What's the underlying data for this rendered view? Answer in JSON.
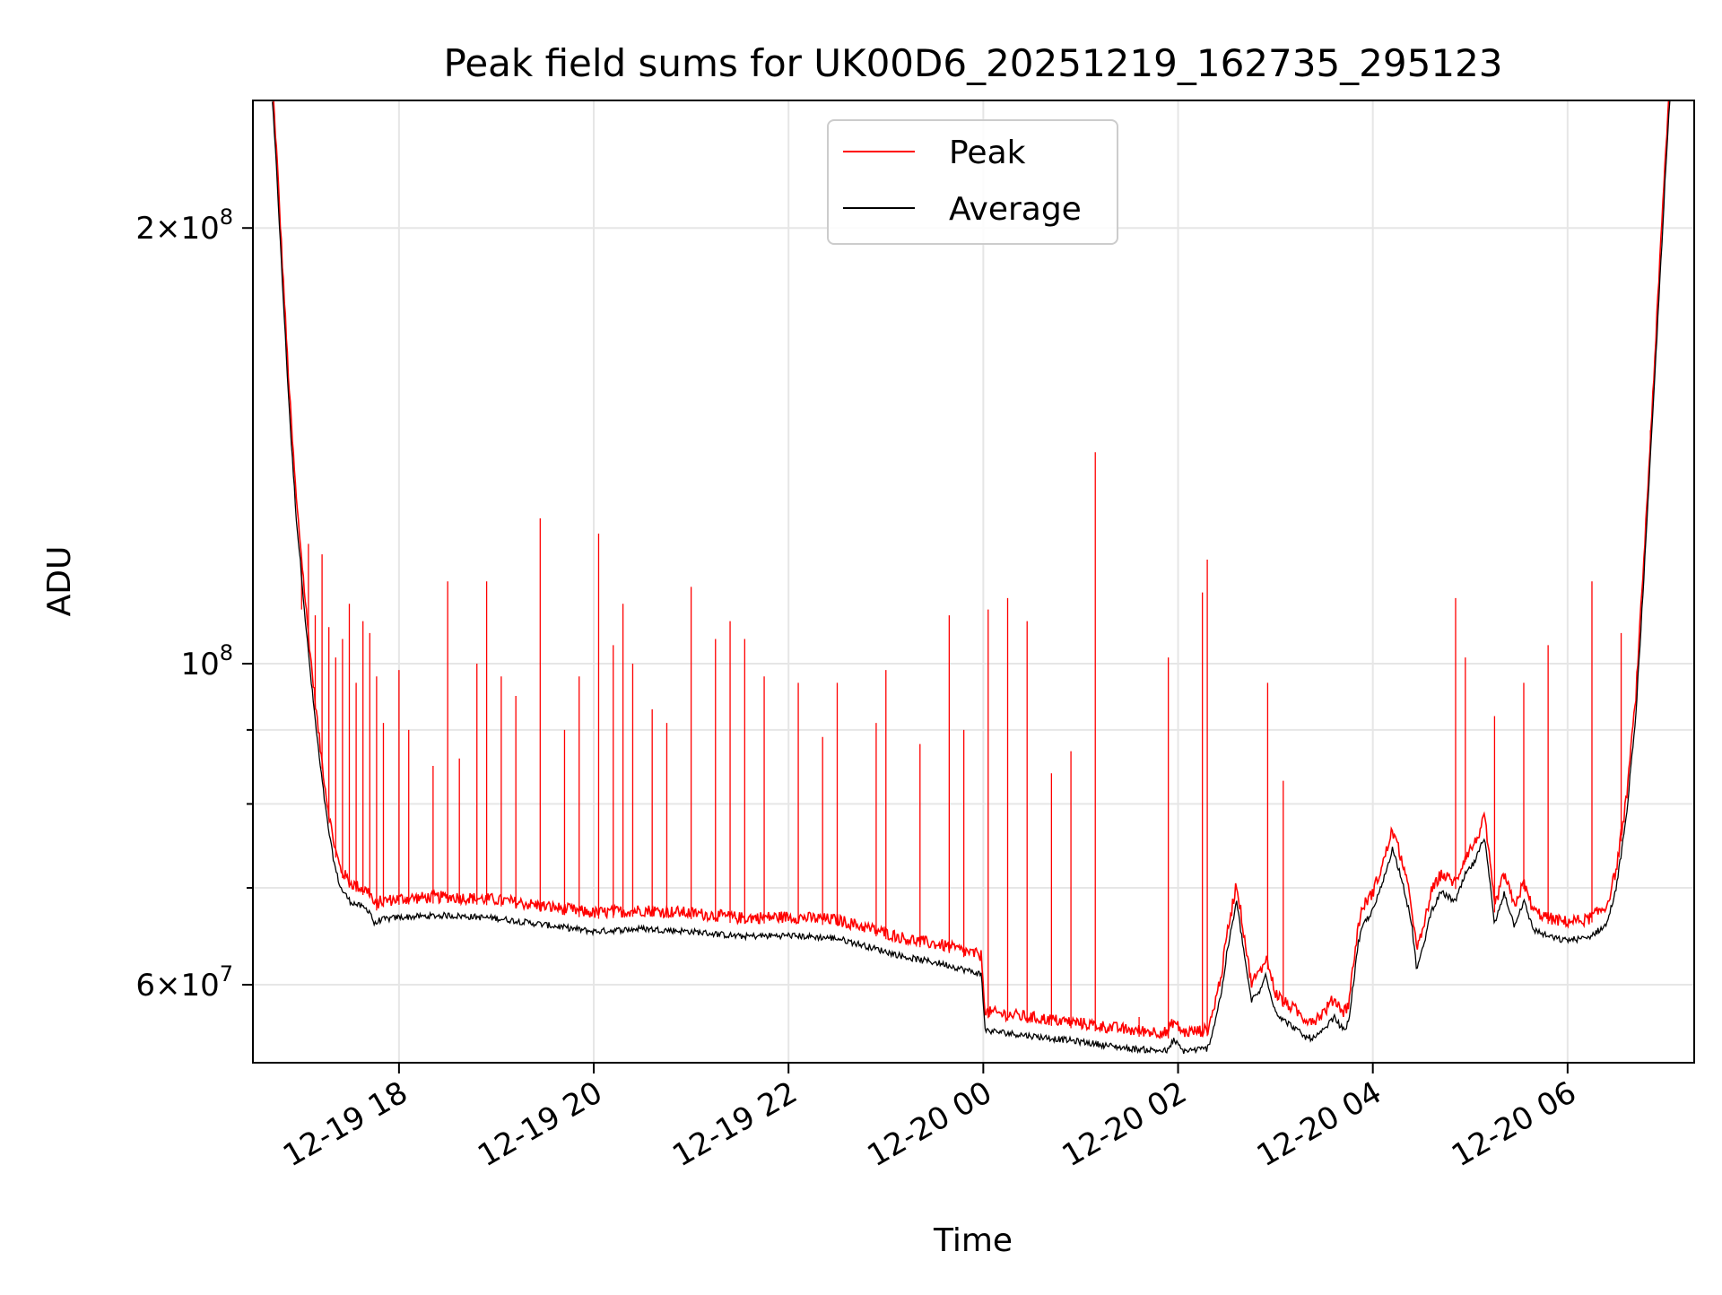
{
  "chart_data": {
    "type": "line",
    "title": "Peak field sums for UK00D6_20251219_162735_295123",
    "xlabel": "Time",
    "ylabel": "ADU",
    "yscale": "log",
    "xlim_hours": [
      16.5,
      31.3
    ],
    "ylim": [
      53000000,
      245000000
    ],
    "grid": true,
    "legend_position": "upper center",
    "legend": [
      {
        "name": "Peak",
        "color": "#ff0000"
      },
      {
        "name": "Average",
        "color": "#000000"
      }
    ],
    "x_ticks": [
      {
        "hour": 18,
        "label": "12-19 18"
      },
      {
        "hour": 20,
        "label": "12-19 20"
      },
      {
        "hour": 22,
        "label": "12-19 22"
      },
      {
        "hour": 24,
        "label": "12-20 00"
      },
      {
        "hour": 26,
        "label": "12-20 02"
      },
      {
        "hour": 28,
        "label": "12-20 04"
      },
      {
        "hour": 30,
        "label": "12-20 06"
      }
    ],
    "y_major_ticks": [
      {
        "value": 60000000,
        "mantissa": "6",
        "exponent": "7"
      },
      {
        "value": 100000000,
        "mantissa": "",
        "exponent": "8"
      },
      {
        "value": 200000000,
        "mantissa": "2",
        "exponent": "8"
      }
    ],
    "y_minor_ticks": [
      70000000,
      80000000,
      90000000
    ],
    "series": [
      {
        "name": "Average",
        "color": "#000000",
        "points": [
          [
            16.7,
            245000000
          ],
          [
            16.75,
            215000000
          ],
          [
            16.8,
            185000000
          ],
          [
            16.85,
            160000000
          ],
          [
            16.9,
            140000000
          ],
          [
            16.95,
            125000000
          ],
          [
            17.0,
            115000000
          ],
          [
            17.05,
            105000000
          ],
          [
            17.1,
            97000000
          ],
          [
            17.15,
            90000000
          ],
          [
            17.2,
            84000000
          ],
          [
            17.25,
            79000000
          ],
          [
            17.3,
            75000000
          ],
          [
            17.35,
            72000000
          ],
          [
            17.4,
            70000000
          ],
          [
            17.5,
            68500000
          ],
          [
            17.6,
            68000000
          ],
          [
            17.7,
            67500000
          ],
          [
            17.75,
            66000000
          ],
          [
            17.8,
            66500000
          ],
          [
            18.0,
            66800000
          ],
          [
            18.5,
            67000000
          ],
          [
            19.0,
            66700000
          ],
          [
            19.5,
            66000000
          ],
          [
            20.0,
            65300000
          ],
          [
            20.5,
            65600000
          ],
          [
            21.0,
            65300000
          ],
          [
            21.5,
            64800000
          ],
          [
            22.0,
            64900000
          ],
          [
            22.5,
            64600000
          ],
          [
            22.8,
            63800000
          ],
          [
            23.2,
            62700000
          ],
          [
            23.6,
            62000000
          ],
          [
            23.98,
            61000000
          ],
          [
            24.02,
            55800000
          ],
          [
            24.5,
            55300000
          ],
          [
            25.0,
            54800000
          ],
          [
            25.5,
            54200000
          ],
          [
            25.9,
            54000000
          ],
          [
            25.95,
            55000000
          ],
          [
            26.05,
            54000000
          ],
          [
            26.3,
            54200000
          ],
          [
            26.35,
            55500000
          ],
          [
            26.45,
            59500000
          ],
          [
            26.5,
            63000000
          ],
          [
            26.6,
            68500000
          ],
          [
            26.68,
            63000000
          ],
          [
            26.75,
            58500000
          ],
          [
            26.85,
            59500000
          ],
          [
            26.9,
            61000000
          ],
          [
            27.0,
            57500000
          ],
          [
            27.1,
            56600000
          ],
          [
            27.2,
            56000000
          ],
          [
            27.3,
            55200000
          ],
          [
            27.4,
            55100000
          ],
          [
            27.5,
            55800000
          ],
          [
            27.6,
            57000000
          ],
          [
            27.7,
            55800000
          ],
          [
            27.75,
            56500000
          ],
          [
            27.85,
            64000000
          ],
          [
            27.9,
            66000000
          ],
          [
            28.0,
            67500000
          ],
          [
            28.1,
            70500000
          ],
          [
            28.2,
            74500000
          ],
          [
            28.3,
            71000000
          ],
          [
            28.4,
            66000000
          ],
          [
            28.45,
            61500000
          ],
          [
            28.5,
            63000000
          ],
          [
            28.6,
            67500000
          ],
          [
            28.7,
            69500000
          ],
          [
            28.85,
            68500000
          ],
          [
            28.95,
            71500000
          ],
          [
            29.05,
            73000000
          ],
          [
            29.15,
            76000000
          ],
          [
            29.25,
            66000000
          ],
          [
            29.35,
            69500000
          ],
          [
            29.45,
            66000000
          ],
          [
            29.55,
            68500000
          ],
          [
            29.65,
            65500000
          ],
          [
            29.8,
            64800000
          ],
          [
            29.95,
            64400000
          ],
          [
            30.2,
            64600000
          ],
          [
            30.4,
            66000000
          ],
          [
            30.5,
            70000000
          ],
          [
            30.6,
            78000000
          ],
          [
            30.7,
            92000000
          ],
          [
            30.8,
            120000000
          ],
          [
            30.9,
            160000000
          ],
          [
            31.0,
            215000000
          ],
          [
            31.05,
            245000000
          ]
        ]
      },
      {
        "name": "Peak",
        "color": "#ff0000",
        "offset_ratio": 1.02,
        "spikes": [
          [
            17.0,
            109000000
          ],
          [
            17.07,
            121000000
          ],
          [
            17.14,
            108000000
          ],
          [
            17.21,
            119000000
          ],
          [
            17.28,
            106000000
          ],
          [
            17.35,
            101000000
          ],
          [
            17.42,
            104000000
          ],
          [
            17.49,
            110000000
          ],
          [
            17.56,
            97000000
          ],
          [
            17.63,
            107000000
          ],
          [
            17.7,
            105000000
          ],
          [
            17.77,
            98000000
          ],
          [
            17.84,
            91000000
          ],
          [
            18.0,
            99000000
          ],
          [
            18.1,
            90000000
          ],
          [
            18.35,
            85000000
          ],
          [
            18.5,
            114000000
          ],
          [
            18.62,
            86000000
          ],
          [
            18.8,
            100000000
          ],
          [
            18.9,
            114000000
          ],
          [
            19.05,
            98000000
          ],
          [
            19.2,
            95000000
          ],
          [
            19.45,
            126000000
          ],
          [
            19.7,
            90000000
          ],
          [
            19.85,
            98000000
          ],
          [
            20.05,
            123000000
          ],
          [
            20.2,
            103000000
          ],
          [
            20.3,
            110000000
          ],
          [
            20.4,
            100000000
          ],
          [
            20.6,
            93000000
          ],
          [
            20.75,
            91000000
          ],
          [
            21.0,
            113000000
          ],
          [
            21.25,
            104000000
          ],
          [
            21.4,
            107000000
          ],
          [
            21.55,
            104000000
          ],
          [
            21.75,
            98000000
          ],
          [
            22.1,
            97000000
          ],
          [
            22.35,
            89000000
          ],
          [
            22.5,
            97000000
          ],
          [
            22.9,
            91000000
          ],
          [
            23.0,
            99000000
          ],
          [
            23.35,
            88000000
          ],
          [
            23.65,
            108000000
          ],
          [
            23.8,
            90000000
          ],
          [
            24.05,
            109000000
          ],
          [
            24.25,
            111000000
          ],
          [
            24.45,
            107000000
          ],
          [
            24.7,
            84000000
          ],
          [
            24.9,
            87000000
          ],
          [
            25.15,
            140000000
          ],
          [
            25.6,
            57000000
          ],
          [
            25.9,
            101000000
          ],
          [
            26.25,
            112000000
          ],
          [
            26.3,
            118000000
          ],
          [
            26.92,
            97000000
          ],
          [
            27.08,
            83000000
          ],
          [
            28.85,
            111000000
          ],
          [
            28.95,
            101000000
          ],
          [
            29.25,
            92000000
          ],
          [
            29.55,
            97000000
          ],
          [
            29.8,
            103000000
          ],
          [
            30.25,
            114000000
          ],
          [
            30.55,
            105000000
          ],
          [
            30.85,
            145000000
          ]
        ]
      }
    ]
  }
}
